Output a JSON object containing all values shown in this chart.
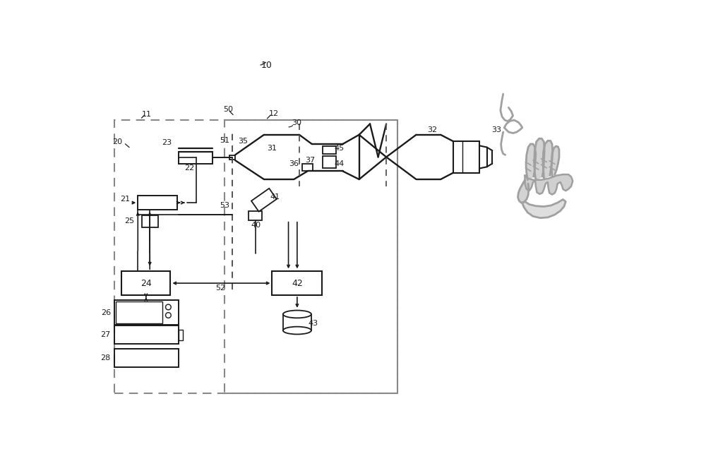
{
  "bg_color": "#ffffff",
  "lc": "#1a1a1a",
  "dc": "#888888",
  "gc": "#aaaaaa",
  "figsize": [
    10.0,
    6.6
  ],
  "dpi": 100
}
